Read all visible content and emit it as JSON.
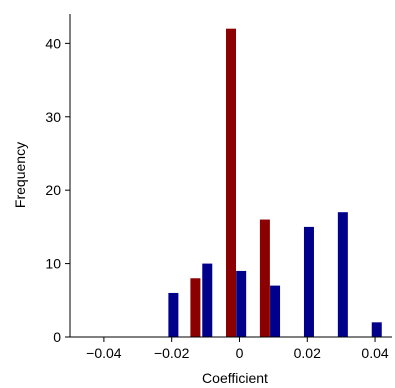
{
  "chart_data": {
    "type": "bar",
    "title": "",
    "xlabel": "Coefficient",
    "ylabel": "Frequency",
    "xlim": [
      -0.05,
      0.045
    ],
    "ylim": [
      0,
      44
    ],
    "grid": false,
    "legend": "none",
    "xticks": [
      -0.04,
      -0.02,
      0,
      0.02,
      0.04
    ],
    "xtick_labels": [
      "−0.04",
      "−0.02",
      "0",
      "0.02",
      "0.04"
    ],
    "yticks": [
      0,
      10,
      20,
      30,
      40
    ],
    "ytick_labels": [
      "0",
      "10",
      "20",
      "30",
      "40"
    ],
    "series": [
      {
        "color": "#8b0000",
        "x": [
          -0.013,
          -0.0025,
          0.0075
        ],
        "values": [
          8,
          42,
          16
        ]
      },
      {
        "color": "#00008b",
        "x": [
          -0.0195,
          -0.0095,
          0.0005,
          0.0105,
          0.0205,
          0.0305,
          0.0405
        ],
        "values": [
          6,
          10,
          9,
          7,
          15,
          17,
          2
        ]
      }
    ]
  }
}
